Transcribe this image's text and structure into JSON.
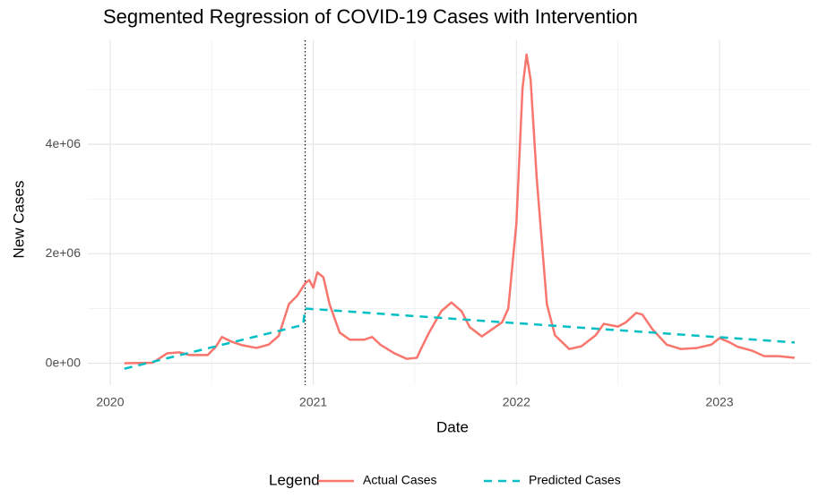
{
  "chart_data": {
    "type": "line",
    "title": "Segmented Regression of COVID-19 Cases with Intervention",
    "x_label": "Date",
    "y_label": "New Cases",
    "legend_title": "Legend",
    "legend_position": "bottom",
    "grid": true,
    "xlim": [
      2019.89,
      2023.45
    ],
    "ylim": [
      -400000,
      5900000
    ],
    "xticks": [
      2020,
      2021,
      2022,
      2023
    ],
    "minor_xticks": [
      2020.5,
      2021.5,
      2022.5
    ],
    "yticks": [
      {
        "value": 0,
        "label": "0e+00"
      },
      {
        "value": 2000000,
        "label": "2e+06"
      },
      {
        "value": 4000000,
        "label": "4e+06"
      }
    ],
    "minor_yticks": [
      1000000,
      3000000,
      5000000
    ],
    "intervention_x": 2020.96,
    "series": [
      {
        "name": "Actual Cases",
        "color": "#F8766D",
        "dash": false,
        "x": [
          2020.07,
          2020.21,
          2020.28,
          2020.34,
          2020.39,
          2020.48,
          2020.52,
          2020.55,
          2020.6,
          2020.65,
          2020.72,
          2020.78,
          2020.83,
          2020.88,
          2020.92,
          2020.96,
          2020.98,
          2021.0,
          2021.02,
          2021.05,
          2021.08,
          2021.13,
          2021.18,
          2021.25,
          2021.29,
          2021.33,
          2021.4,
          2021.46,
          2021.51,
          2021.53,
          2021.57,
          2021.63,
          2021.68,
          2021.73,
          2021.77,
          2021.83,
          2021.88,
          2021.93,
          2021.96,
          2022.0,
          2022.03,
          2022.05,
          2022.07,
          2022.1,
          2022.15,
          2022.19,
          2022.26,
          2022.32,
          2022.39,
          2022.43,
          2022.5,
          2022.54,
          2022.59,
          2022.62,
          2022.67,
          2022.74,
          2022.81,
          2022.89,
          2022.96,
          2023.0,
          2023.05,
          2023.09,
          2023.16,
          2023.22,
          2023.29,
          2023.37
        ],
        "values": [
          0,
          10000,
          180000,
          200000,
          150000,
          150000,
          300000,
          480000,
          390000,
          330000,
          280000,
          340000,
          500000,
          1080000,
          1230000,
          1460000,
          1520000,
          1380000,
          1660000,
          1570000,
          1080000,
          560000,
          430000,
          430000,
          480000,
          340000,
          180000,
          80000,
          100000,
          260000,
          560000,
          950000,
          1110000,
          950000,
          660000,
          490000,
          620000,
          750000,
          1000000,
          2560000,
          5020000,
          5640000,
          5180000,
          3380000,
          1080000,
          510000,
          260000,
          310000,
          510000,
          720000,
          670000,
          750000,
          920000,
          890000,
          620000,
          340000,
          260000,
          280000,
          340000,
          460000,
          380000,
          300000,
          230000,
          130000,
          130000,
          100000
        ]
      },
      {
        "name": "Predicted Cases",
        "color": "#00BFC4",
        "dash": true,
        "x": [
          2020.07,
          2020.95,
          2020.96,
          2023.37
        ],
        "values": [
          -100000,
          700000,
          1000000,
          380000
        ]
      }
    ]
  }
}
